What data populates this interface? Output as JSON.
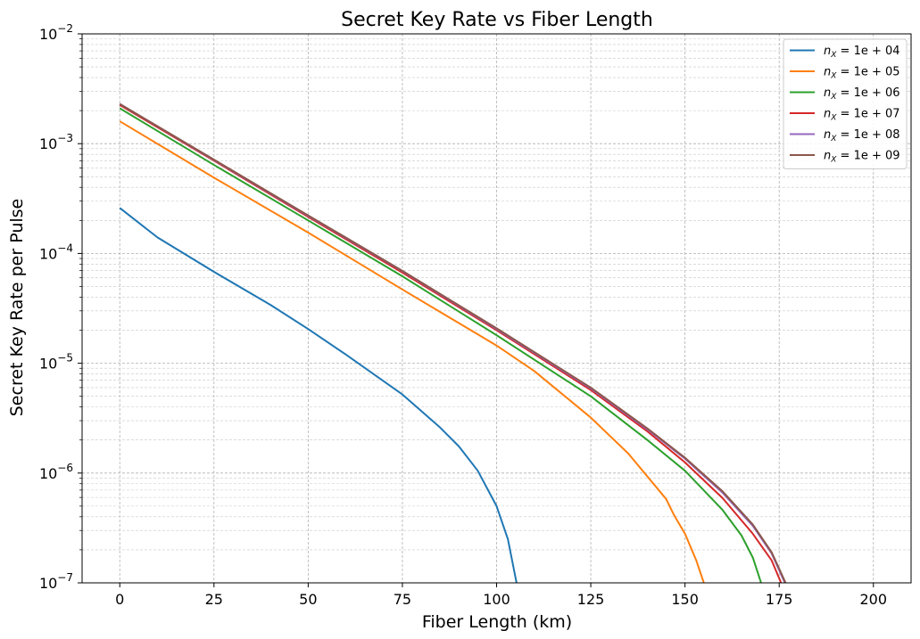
{
  "chart_data": {
    "type": "line",
    "title": "Secret Key Rate vs Fiber Length",
    "xlabel": "Fiber Length (km)",
    "ylabel": "Secret Key Rate per Pulse",
    "xlim": [
      -10,
      210
    ],
    "ylim": [
      1e-07,
      0.01
    ],
    "yscale": "log",
    "xticks": [
      0,
      25,
      50,
      75,
      100,
      125,
      150,
      175,
      200
    ],
    "xtick_labels": [
      "0",
      "25",
      "50",
      "75",
      "100",
      "125",
      "150",
      "175",
      "200"
    ],
    "yticks": [
      1e-07,
      1e-06,
      1e-05,
      0.0001,
      0.001,
      0.01
    ],
    "ytick_labels": [
      {
        "base": "10",
        "exp": "−7"
      },
      {
        "base": "10",
        "exp": "−6"
      },
      {
        "base": "10",
        "exp": "−5"
      },
      {
        "base": "10",
        "exp": "−4"
      },
      {
        "base": "10",
        "exp": "−3"
      },
      {
        "base": "10",
        "exp": "−2"
      }
    ],
    "grid": true,
    "legend_position": "top-right",
    "series": [
      {
        "name": "n_X = 1e+04",
        "legend_main": "n",
        "legend_sub": "X",
        "legend_rest": " = 1e + 04",
        "color": "#1f77b4",
        "points": [
          [
            0,
            0.00026
          ],
          [
            10,
            0.00014
          ],
          [
            25,
            6.8e-05
          ],
          [
            40,
            3.4e-05
          ],
          [
            50,
            2.05e-05
          ],
          [
            60,
            1.2e-05
          ],
          [
            75,
            5.2e-06
          ],
          [
            85,
            2.6e-06
          ],
          [
            90,
            1.75e-06
          ],
          [
            95,
            1.05e-06
          ],
          [
            100,
            5e-07
          ],
          [
            103,
            2.5e-07
          ],
          [
            105.3,
            1e-07
          ]
        ]
      },
      {
        "name": "n_X = 1e+05",
        "legend_main": "n",
        "legend_sub": "X",
        "legend_rest": " = 1e + 05",
        "color": "#ff7f0e",
        "points": [
          [
            0,
            0.0016
          ],
          [
            25,
            0.00049
          ],
          [
            50,
            0.000155
          ],
          [
            75,
            4.7e-05
          ],
          [
            100,
            1.45e-05
          ],
          [
            110,
            8.5e-06
          ],
          [
            125,
            3.2e-06
          ],
          [
            135,
            1.5e-06
          ],
          [
            145,
            5.8e-07
          ],
          [
            147,
            4.2e-07
          ],
          [
            150,
            2.8e-07
          ],
          [
            153,
            1.6e-07
          ],
          [
            155,
            1e-07
          ]
        ]
      },
      {
        "name": "n_X = 1e+06",
        "legend_main": "n",
        "legend_sub": "X",
        "legend_rest": " = 1e + 06",
        "color": "#2ca02c",
        "points": [
          [
            0,
            0.0021
          ],
          [
            25,
            0.00064
          ],
          [
            50,
            0.0002
          ],
          [
            75,
            6.2e-05
          ],
          [
            100,
            1.8e-05
          ],
          [
            125,
            5e-06
          ],
          [
            140,
            2e-06
          ],
          [
            150,
            1.05e-06
          ],
          [
            160,
            4.6e-07
          ],
          [
            165,
            2.7e-07
          ],
          [
            168,
            1.7e-07
          ],
          [
            170.2,
            1e-07
          ]
        ]
      },
      {
        "name": "n_X = 1e+07",
        "legend_main": "n",
        "legend_sub": "X",
        "legend_rest": " = 1e + 07",
        "color": "#d62728",
        "points": [
          [
            0,
            0.00225
          ],
          [
            25,
            0.0007
          ],
          [
            50,
            0.000215
          ],
          [
            75,
            6.7e-05
          ],
          [
            100,
            2e-05
          ],
          [
            125,
            5.7e-06
          ],
          [
            140,
            2.4e-06
          ],
          [
            150,
            1.25e-06
          ],
          [
            160,
            5.9e-07
          ],
          [
            168,
            2.8e-07
          ],
          [
            173,
            1.6e-07
          ],
          [
            175.5,
            1e-07
          ]
        ]
      },
      {
        "name": "n_X = 1e+08",
        "legend_main": "n",
        "legend_sub": "X",
        "legend_rest": " = 1e + 08",
        "color": "#9467bd",
        "points": [
          [
            0,
            0.0023
          ],
          [
            25,
            0.00071
          ],
          [
            50,
            0.00022
          ],
          [
            75,
            6.9e-05
          ],
          [
            100,
            2.05e-05
          ],
          [
            125,
            5.9e-06
          ],
          [
            140,
            2.5e-06
          ],
          [
            150,
            1.35e-06
          ],
          [
            160,
            6.6e-07
          ],
          [
            168,
            3.3e-07
          ],
          [
            173,
            1.85e-07
          ],
          [
            176.5,
            1e-07
          ]
        ]
      },
      {
        "name": "n_X = 1e+09",
        "legend_main": "n",
        "legend_sub": "X",
        "legend_rest": " = 1e + 09",
        "color": "#8c564b",
        "points": [
          [
            0,
            0.0023
          ],
          [
            25,
            0.000715
          ],
          [
            50,
            0.000222
          ],
          [
            75,
            6.95e-05
          ],
          [
            100,
            2.08e-05
          ],
          [
            125,
            6e-06
          ],
          [
            140,
            2.55e-06
          ],
          [
            150,
            1.38e-06
          ],
          [
            160,
            6.8e-07
          ],
          [
            168,
            3.4e-07
          ],
          [
            173,
            1.9e-07
          ],
          [
            176.7,
            1e-07
          ]
        ]
      }
    ]
  }
}
